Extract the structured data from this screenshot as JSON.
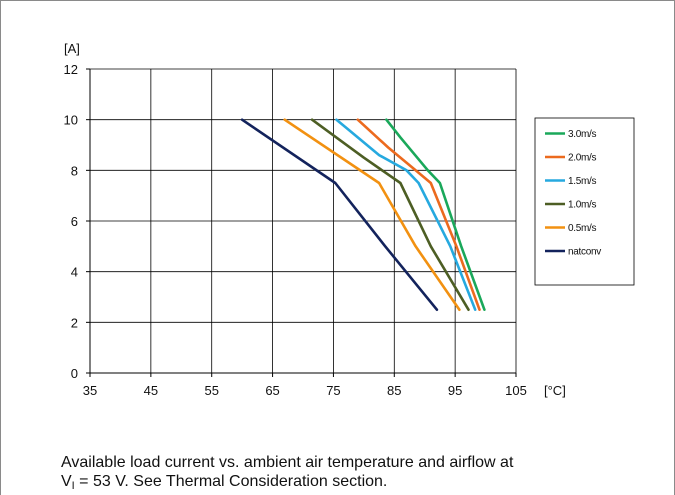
{
  "chart_data": {
    "type": "line",
    "title": "",
    "xlabel": "",
    "ylabel": "",
    "y_unit_label": "[A]",
    "x_unit_label": "[°C]",
    "xlim": [
      35,
      105
    ],
    "ylim": [
      0,
      12
    ],
    "x_ticks": [
      "35",
      "45",
      "55",
      "65",
      "75",
      "85",
      "95",
      "105"
    ],
    "y_ticks": [
      "0",
      "2",
      "4",
      "6",
      "8",
      "10",
      "12"
    ],
    "grid": true,
    "legend_position": "right",
    "series": [
      {
        "name": "3.0m/s",
        "color": "#1aa85a",
        "points": [
          [
            83.7,
            10
          ],
          [
            86,
            9.3
          ],
          [
            90.5,
            8
          ],
          [
            92.5,
            7.5
          ],
          [
            96,
            5
          ],
          [
            99.8,
            2.5
          ]
        ]
      },
      {
        "name": "2.0m/s",
        "color": "#ec6a1e",
        "points": [
          [
            79,
            10
          ],
          [
            84,
            8.9
          ],
          [
            88.5,
            8
          ],
          [
            91,
            7.5
          ],
          [
            95.2,
            5
          ],
          [
            99,
            2.5
          ]
        ]
      },
      {
        "name": "1.5m/s",
        "color": "#26a9df",
        "points": [
          [
            75.5,
            10
          ],
          [
            82.5,
            8.6
          ],
          [
            87,
            8
          ],
          [
            89,
            7.5
          ],
          [
            94.2,
            5
          ],
          [
            98.3,
            2.5
          ]
        ]
      },
      {
        "name": "1.0m/s",
        "color": "#4d5e24",
        "points": [
          [
            71.5,
            10
          ],
          [
            80,
            8.5
          ],
          [
            86,
            7.5
          ],
          [
            91,
            5
          ],
          [
            97.2,
            2.5
          ]
        ]
      },
      {
        "name": "0.5m/s",
        "color": "#f29111",
        "points": [
          [
            67,
            10
          ],
          [
            82.5,
            7.5
          ],
          [
            88.5,
            5
          ],
          [
            95.7,
            2.5
          ]
        ]
      },
      {
        "name": "natconv",
        "color": "#13235c",
        "points": [
          [
            60,
            10
          ],
          [
            75.3,
            7.5
          ],
          [
            83.5,
            5
          ],
          [
            92,
            2.5
          ]
        ]
      }
    ]
  },
  "caption": {
    "line1": "Available load current vs. ambient air temperature and airflow at",
    "line2_prefix": "V",
    "line2_sub": "I",
    "line2_rest": " = 53 V. See Thermal Consideration section."
  }
}
